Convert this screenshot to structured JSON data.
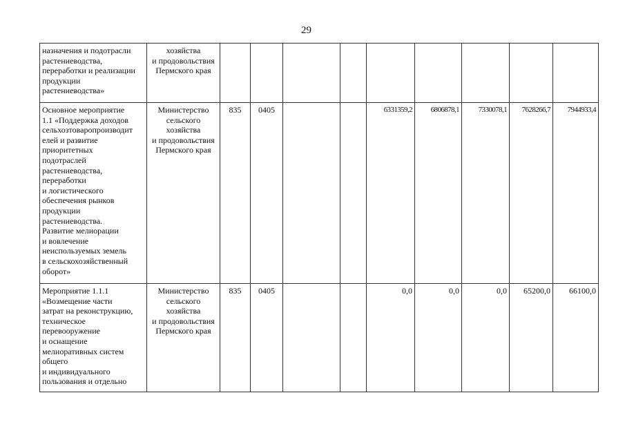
{
  "page_number": "29",
  "rows": [
    {
      "name": "назначения и подотрасли\nрастениеводства,\nпереработки и реализации\nпродукции\nрастениеводства»",
      "executor": "хозяйства\nи продовольствия\nПермского края",
      "grbs": "",
      "rzpr": "",
      "csr": "",
      "vr": "",
      "values": [
        "",
        "",
        "",
        "",
        ""
      ]
    },
    {
      "name": "Основное мероприятие\n1.1 «Поддержка доходов\nсельхозтоваропроизводит\nелей и развитие\nприоритетных\nподотраслей\nрастениеводства,\nпереработки\nи логистического\nобеспечения рынков\nпродукции\nрастениеводства.\nРазвитие мелиорации\nи вовлечение\nнеиспользуемых земель\nв сельскохозяйственный\nоборот»",
      "executor": "Министерство\nсельского\nхозяйства\nи продовольствия\nПермского края",
      "grbs": "835",
      "rzpr": "0405",
      "csr": "",
      "vr": "",
      "values": [
        "6331359,2",
        "6806878,1",
        "7330078,1",
        "7628266,7",
        "7944933,4"
      ]
    },
    {
      "name": "Мероприятие 1.1.1\n«Возмещение части\nзатрат на реконструкцию,\nтехническое\nперевооружение\nи оснащение\nмелиоративных систем\nобщего\nи индивидуального\nпользования и отдельно",
      "executor": "Министерство\nсельского\nхозяйства\nи продовольствия\nПермского края",
      "grbs": "835",
      "rzpr": "0405",
      "csr": "",
      "vr": "",
      "values": [
        "0,0",
        "0,0",
        "0,0",
        "65200,0",
        "66100,0"
      ]
    }
  ]
}
